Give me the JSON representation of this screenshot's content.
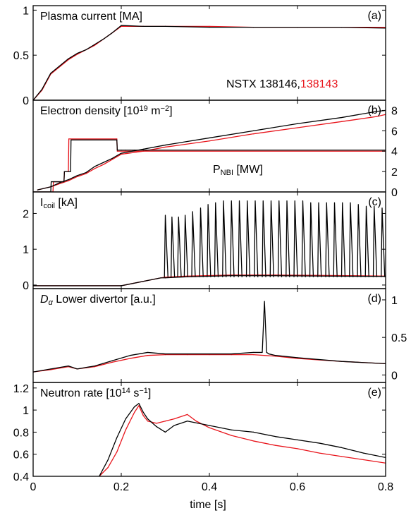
{
  "figure": {
    "xlabel": "time [s]",
    "x_ticks": [
      "0",
      "0.2",
      "0.4",
      "0.6",
      "0.8"
    ],
    "x_tick_values": [
      0,
      0.2,
      0.4,
      0.6,
      0.8
    ],
    "xlim": [
      0,
      0.8
    ],
    "colors": {
      "shot_black": "#000000",
      "shot_red": "#e8141b"
    }
  },
  "chart_data": [
    {
      "type": "line",
      "panel": "(a)",
      "title_parts": [
        "Plasma current [MA]"
      ],
      "ylim": [
        0,
        1.05
      ],
      "y_ticks": [
        "0",
        "0.5",
        "1"
      ],
      "y_tick_values": [
        0,
        0.5,
        1
      ],
      "annotation": {
        "prefix": "NSTX 138146,",
        "red_part": "138143"
      },
      "series": [
        {
          "name": "138146",
          "color": "#000000",
          "x": [
            0,
            0.02,
            0.04,
            0.06,
            0.08,
            0.1,
            0.12,
            0.14,
            0.16,
            0.18,
            0.2,
            0.25,
            0.3,
            0.4,
            0.5,
            0.6,
            0.7,
            0.8
          ],
          "y": [
            0,
            0.12,
            0.3,
            0.38,
            0.46,
            0.52,
            0.56,
            0.62,
            0.68,
            0.75,
            0.83,
            0.82,
            0.82,
            0.81,
            0.81,
            0.81,
            0.81,
            0.8
          ]
        },
        {
          "name": "138143",
          "color": "#e8141b",
          "x": [
            0,
            0.02,
            0.04,
            0.06,
            0.08,
            0.1,
            0.12,
            0.14,
            0.16,
            0.18,
            0.2,
            0.25,
            0.3,
            0.4,
            0.5,
            0.6,
            0.7,
            0.8
          ],
          "y": [
            0,
            0.11,
            0.29,
            0.37,
            0.45,
            0.51,
            0.56,
            0.61,
            0.68,
            0.75,
            0.82,
            0.82,
            0.82,
            0.82,
            0.81,
            0.81,
            0.81,
            0.81
          ]
        }
      ]
    },
    {
      "type": "line",
      "panel": "(b)",
      "title_parts": [
        "Electron density [10",
        "19",
        " m",
        "−2",
        "]"
      ],
      "nbi_label_parts": [
        "P",
        "NBI",
        " [MW]"
      ],
      "ylim": [
        0,
        9
      ],
      "right_ticks": [
        "0",
        "2",
        "4",
        "6",
        "8"
      ],
      "right_tick_values": [
        0,
        2,
        4,
        6,
        8
      ],
      "series": [
        {
          "name": "density 138146",
          "color": "#000000",
          "x": [
            0.01,
            0.04,
            0.06,
            0.08,
            0.1,
            0.12,
            0.14,
            0.16,
            0.18,
            0.2,
            0.25,
            0.3,
            0.4,
            0.5,
            0.6,
            0.7,
            0.78,
            0.8
          ],
          "y": [
            0.2,
            0.5,
            0.9,
            1.2,
            1.6,
            1.9,
            2.5,
            2.9,
            3.3,
            3.8,
            4.2,
            4.6,
            5.3,
            6.0,
            6.7,
            7.3,
            7.9,
            8.0
          ]
        },
        {
          "name": "density 138143",
          "color": "#e8141b",
          "x": [
            0.01,
            0.04,
            0.06,
            0.08,
            0.1,
            0.12,
            0.14,
            0.16,
            0.18,
            0.2,
            0.25,
            0.3,
            0.4,
            0.5,
            0.6,
            0.7,
            0.78,
            0.8
          ],
          "y": [
            0.2,
            0.5,
            0.8,
            1.1,
            1.5,
            1.8,
            2.3,
            2.7,
            3.2,
            3.7,
            4.0,
            4.4,
            5.0,
            5.7,
            6.3,
            6.9,
            7.4,
            7.6
          ]
        },
        {
          "name": "P_NBI 138146",
          "color": "#000000",
          "x": [
            0,
            0.04,
            0.041,
            0.07,
            0.071,
            0.085,
            0.086,
            0.19,
            0.191,
            0.2,
            0.21,
            0.22,
            0.23,
            0.24,
            0.25,
            0.8
          ],
          "y": [
            0,
            0,
            1.0,
            1.0,
            2.0,
            2.0,
            5.1,
            5.1,
            4.1,
            4.1,
            4.1,
            4.1,
            4.1,
            4.1,
            4.1,
            4.1
          ]
        },
        {
          "name": "P_NBI 138143",
          "color": "#e8141b",
          "x": [
            0,
            0.045,
            0.046,
            0.07,
            0.071,
            0.08,
            0.081,
            0.19,
            0.191,
            0.8
          ],
          "y": [
            0,
            0,
            1.0,
            1.0,
            2.0,
            2.0,
            5.2,
            5.2,
            4.0,
            4.0
          ]
        }
      ]
    },
    {
      "type": "line",
      "panel": "(c)",
      "title_parts": [
        "I",
        "coil",
        " [kA]"
      ],
      "ylim": [
        -0.1,
        2.6
      ],
      "y_ticks": [
        "0",
        "1",
        "2"
      ],
      "y_tick_values": [
        0,
        1,
        2
      ],
      "spikes_x": [
        0.3,
        0.315,
        0.33,
        0.345,
        0.362,
        0.38,
        0.397,
        0.414,
        0.432,
        0.45,
        0.468,
        0.486,
        0.504,
        0.522,
        0.54,
        0.558,
        0.576,
        0.594,
        0.612,
        0.63,
        0.648,
        0.666,
        0.684,
        0.702,
        0.72,
        0.738,
        0.756,
        0.774,
        0.792
      ],
      "spikes_y": [
        1.95,
        1.9,
        1.9,
        1.95,
        2.05,
        2.15,
        2.25,
        2.3,
        2.35,
        2.35,
        2.35,
        2.35,
        2.35,
        2.35,
        2.35,
        2.35,
        2.35,
        2.35,
        2.35,
        2.3,
        2.3,
        2.3,
        2.3,
        2.3,
        2.3,
        2.25,
        2.2,
        2.2,
        2.15
      ],
      "series": [
        {
          "name": "138143",
          "color": "#e8141b",
          "x": [
            0,
            0.2,
            0.29,
            0.3,
            0.35,
            0.45,
            0.55,
            0.65,
            0.8
          ],
          "y": [
            -0.02,
            -0.02,
            0.2,
            0.22,
            0.25,
            0.28,
            0.28,
            0.27,
            0.25
          ]
        },
        {
          "name": "138146 base",
          "color": "#000000",
          "x": [
            0,
            0.2,
            0.29,
            0.3,
            0.35,
            0.45,
            0.55,
            0.65,
            0.8
          ],
          "y": [
            -0.02,
            -0.02,
            0.2,
            0.2,
            0.23,
            0.26,
            0.26,
            0.25,
            0.24
          ]
        }
      ]
    },
    {
      "type": "line",
      "panel": "(d)",
      "title_parts": [
        "D",
        "α",
        " Lower divertor [a.u.]"
      ],
      "ylim": [
        -0.1,
        1.15
      ],
      "right_ticks": [
        "0",
        "0.5",
        "1"
      ],
      "right_tick_values": [
        0,
        0.5,
        1
      ],
      "series": [
        {
          "name": "138146",
          "color": "#000000",
          "x": [
            0,
            0.04,
            0.08,
            0.1,
            0.14,
            0.18,
            0.22,
            0.26,
            0.3,
            0.35,
            0.4,
            0.45,
            0.5,
            0.52,
            0.525,
            0.53,
            0.535,
            0.55,
            0.6,
            0.7,
            0.8
          ],
          "y": [
            0.04,
            0.08,
            0.12,
            0.08,
            0.12,
            0.19,
            0.26,
            0.3,
            0.28,
            0.28,
            0.28,
            0.28,
            0.3,
            0.3,
            0.98,
            0.3,
            0.28,
            0.26,
            0.23,
            0.18,
            0.15
          ]
        },
        {
          "name": "138143",
          "color": "#e8141b",
          "x": [
            0,
            0.04,
            0.08,
            0.1,
            0.14,
            0.18,
            0.22,
            0.26,
            0.3,
            0.35,
            0.4,
            0.45,
            0.5,
            0.55,
            0.6,
            0.7,
            0.8
          ],
          "y": [
            0.04,
            0.07,
            0.11,
            0.08,
            0.11,
            0.17,
            0.22,
            0.26,
            0.27,
            0.27,
            0.27,
            0.27,
            0.27,
            0.25,
            0.22,
            0.18,
            0.15
          ]
        }
      ]
    },
    {
      "type": "line",
      "panel": "(e)",
      "title_parts": [
        "Neutron rate [10",
        "14",
        " s",
        "−1",
        "]"
      ],
      "ylim": [
        0.4,
        1.25
      ],
      "y_ticks": [
        "0.4",
        "0.6",
        "0.8",
        "1",
        "1.2"
      ],
      "y_tick_values": [
        0.4,
        0.6,
        0.8,
        1.0,
        1.2
      ],
      "series": [
        {
          "name": "138146",
          "color": "#000000",
          "x": [
            0.15,
            0.17,
            0.19,
            0.21,
            0.23,
            0.24,
            0.25,
            0.26,
            0.28,
            0.3,
            0.32,
            0.35,
            0.4,
            0.45,
            0.5,
            0.55,
            0.6,
            0.65,
            0.7,
            0.75,
            0.8
          ],
          "y": [
            0.4,
            0.55,
            0.75,
            0.92,
            1.03,
            1.06,
            0.98,
            0.92,
            0.85,
            0.8,
            0.86,
            0.9,
            0.86,
            0.82,
            0.8,
            0.76,
            0.73,
            0.7,
            0.66,
            0.61,
            0.57
          ]
        },
        {
          "name": "138143",
          "color": "#e8141b",
          "x": [
            0.15,
            0.17,
            0.19,
            0.21,
            0.23,
            0.24,
            0.25,
            0.26,
            0.28,
            0.3,
            0.32,
            0.35,
            0.37,
            0.4,
            0.45,
            0.5,
            0.55,
            0.6,
            0.65,
            0.7,
            0.75,
            0.8
          ],
          "y": [
            0.4,
            0.48,
            0.62,
            0.82,
            0.98,
            1.04,
            0.95,
            0.9,
            0.88,
            0.9,
            0.92,
            0.96,
            0.9,
            0.84,
            0.77,
            0.72,
            0.68,
            0.65,
            0.61,
            0.58,
            0.55,
            0.52
          ]
        }
      ]
    }
  ]
}
